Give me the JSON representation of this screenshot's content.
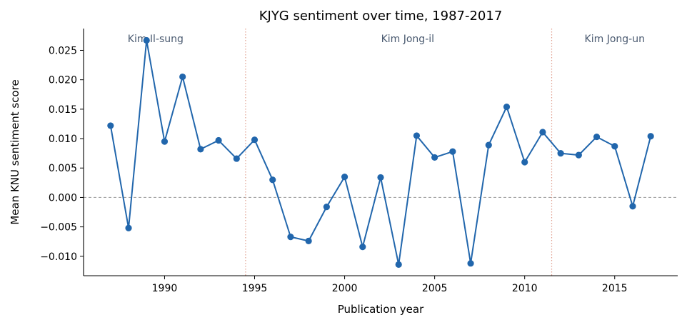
{
  "chart_data": {
    "type": "line",
    "title": "KJYG sentiment over time, 1987-2017",
    "xlabel": "Publication year",
    "ylabel": "Mean KNU sentiment score",
    "xlim": [
      1985.5,
      2018.5
    ],
    "ylim": [
      -0.0133,
      0.0287
    ],
    "xticks": [
      1990,
      1995,
      2000,
      2005,
      2010,
      2015
    ],
    "yticks": [
      -0.01,
      -0.005,
      0.0,
      0.005,
      0.01,
      0.015,
      0.02,
      0.025
    ],
    "xtick_labels": [
      "1990",
      "1995",
      "2000",
      "2005",
      "2010",
      "2015"
    ],
    "ytick_labels": [
      "−0.010",
      "−0.005",
      "0.000",
      "0.005",
      "0.010",
      "0.015",
      "0.020",
      "0.025"
    ],
    "grid": false,
    "x": [
      1987,
      1988,
      1989,
      1990,
      1991,
      1992,
      1993,
      1994,
      1995,
      1996,
      1997,
      1998,
      1999,
      2000,
      2001,
      2002,
      2003,
      2004,
      2005,
      2006,
      2007,
      2008,
      2009,
      2010,
      2011,
      2012,
      2013,
      2014,
      2015,
      2016,
      2017
    ],
    "series": [
      {
        "values": [
          0.0122,
          -0.0052,
          0.0267,
          0.0095,
          0.0205,
          0.0082,
          0.0097,
          0.0066,
          0.0098,
          0.003,
          -0.0067,
          -0.0074,
          -0.0016,
          0.0035,
          -0.0084,
          0.0034,
          -0.0114,
          0.0105,
          0.0068,
          0.0078,
          -0.0112,
          0.0089,
          0.0154,
          0.006,
          0.0111,
          0.0075,
          0.0072,
          0.0103,
          0.0087,
          -0.0015,
          0.0104
        ],
        "color": "#2166ac"
      }
    ],
    "reference_line": {
      "y": 0.0,
      "style": "dashed",
      "color": "#999999"
    },
    "era_dividers": [
      {
        "x": 1994.5,
        "color": "#e0a090"
      },
      {
        "x": 2011.5,
        "color": "#e0a090"
      }
    ],
    "era_labels": [
      {
        "text": "Kim Il-sung",
        "x": 1989.5
      },
      {
        "text": "Kim Jong-il",
        "x": 2003.5
      },
      {
        "text": "Kim Jong-un",
        "x": 2015.0
      }
    ],
    "era_label_color": "#4a5a70"
  }
}
